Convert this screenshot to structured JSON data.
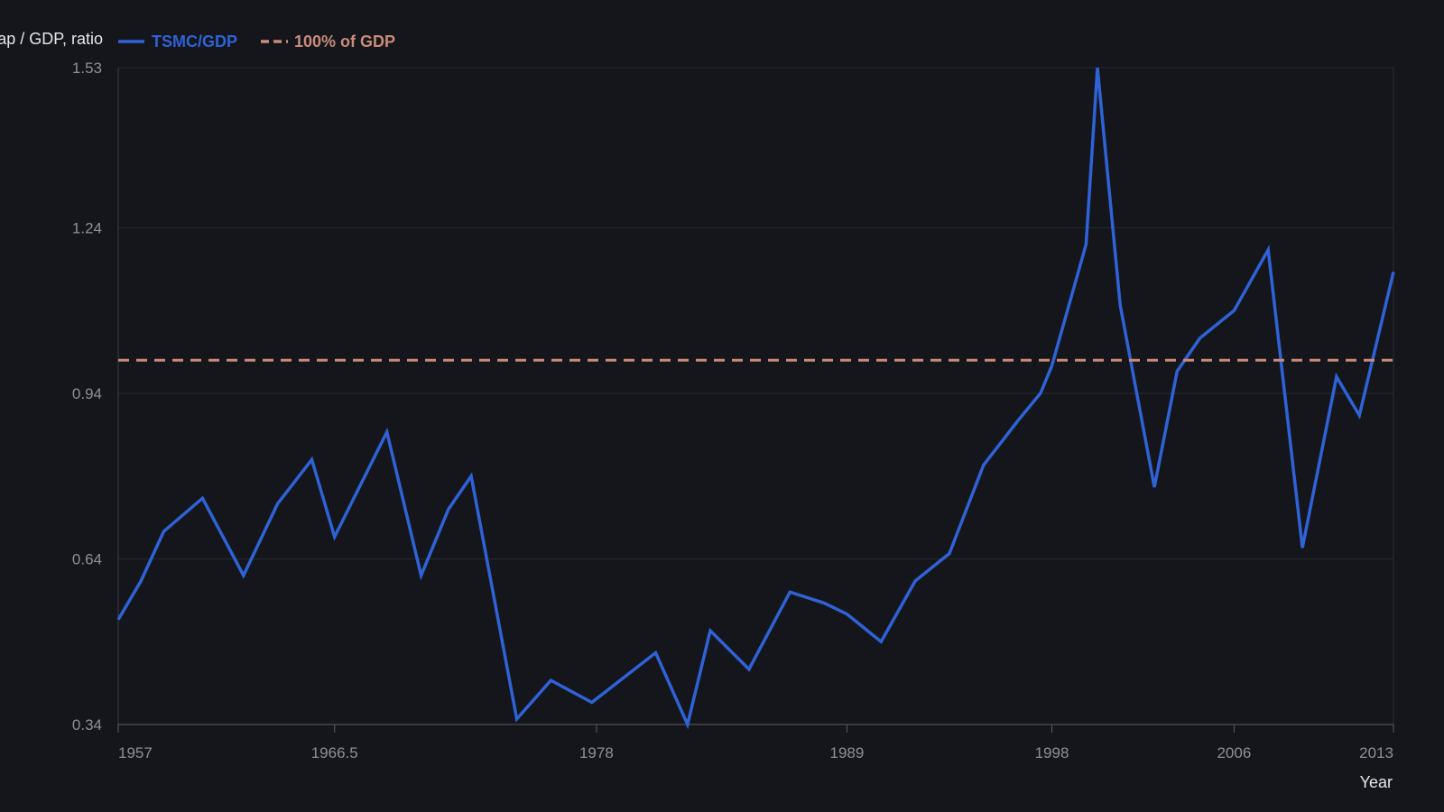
{
  "chart_data": {
    "type": "line",
    "title": "",
    "xlabel": "Year",
    "ylabel": "Market cap / GDP, ratio",
    "ylim": [
      0.34,
      1.53
    ],
    "xlim": [
      1957,
      2013
    ],
    "x_ticks": [
      1957,
      1966.5,
      1978,
      1989,
      1998,
      2006,
      2013
    ],
    "y_ticks": [
      0.34,
      0.64,
      0.94,
      1.24,
      1.53
    ],
    "y_grid": true,
    "legend_position": "top-left",
    "series": [
      {
        "name": "TSMC/GDP",
        "color": "#2f62d6",
        "style": "solid",
        "x": [
          1957,
          1958,
          1959,
          1960.7,
          1962.5,
          1964,
          1965.5,
          1966.5,
          1968.8,
          1970.3,
          1971.5,
          1972.5,
          1974.5,
          1976,
          1977.8,
          1980.6,
          1982,
          1983,
          1984.7,
          1986.5,
          1988,
          1989,
          1990.5,
          1992,
          1993.5,
          1995,
          1996.5,
          1997.5,
          1998,
          1999.5,
          2000,
          2001,
          2002.5,
          2003.5,
          2004.5,
          2006,
          2007.5,
          2009,
          2010.5,
          2011.5,
          2013
        ],
        "y": [
          0.53,
          0.6,
          0.69,
          0.75,
          0.61,
          0.74,
          0.82,
          0.68,
          0.87,
          0.61,
          0.73,
          0.79,
          0.35,
          0.42,
          0.38,
          0.47,
          0.34,
          0.51,
          0.44,
          0.58,
          0.56,
          0.54,
          0.49,
          0.6,
          0.65,
          0.81,
          0.89,
          0.94,
          0.99,
          1.21,
          1.53,
          1.1,
          0.77,
          0.98,
          1.04,
          1.09,
          1.2,
          0.66,
          0.97,
          0.9,
          1.16
        ]
      },
      {
        "name": "100% of GDP",
        "color": "#c98b7a",
        "style": "dashed",
        "value": 1.0
      }
    ]
  }
}
